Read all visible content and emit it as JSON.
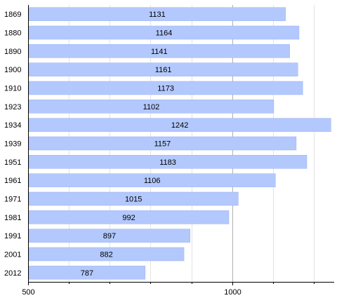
{
  "chart_data": {
    "type": "bar",
    "orientation": "horizontal",
    "categories": [
      "1869",
      "1880",
      "1890",
      "1900",
      "1910",
      "1923",
      "1934",
      "1939",
      "1951",
      "1961",
      "1971",
      "1981",
      "1991",
      "2001",
      "2012"
    ],
    "values": [
      1131,
      1164,
      1141,
      1161,
      1173,
      1102,
      1242,
      1157,
      1183,
      1106,
      1015,
      992,
      897,
      882,
      787
    ],
    "xlim": [
      500,
      1250
    ],
    "xticks": [
      "500",
      "1000"
    ],
    "minor_gridlines": [
      600,
      700,
      800,
      900,
      1100,
      1200
    ],
    "grid": true,
    "data_labels": true,
    "bar_color": "#b3c8fc",
    "bar_edge_color": "#99b2f2",
    "grid_color": "#e3e3e3",
    "major_grid_color": "#b0b0b0"
  }
}
